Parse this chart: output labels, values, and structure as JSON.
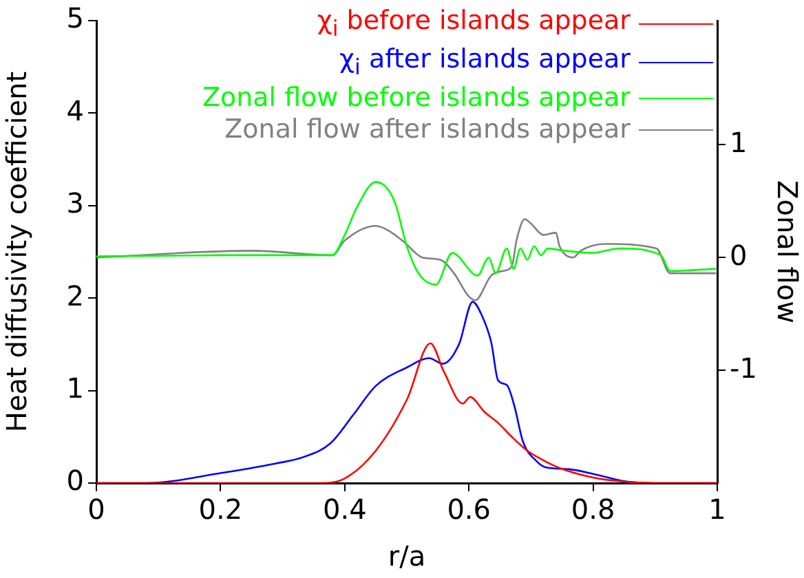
{
  "chart_data": {
    "type": "line",
    "xlabel": "r/a",
    "ylabel": "Heat diffusivity coefficient",
    "y2label": "Zonal flow",
    "xlim": [
      0,
      1
    ],
    "xticks": [
      0,
      0.2,
      0.4,
      0.6,
      0.8,
      1
    ],
    "ylim": [
      0,
      5
    ],
    "yticks": [
      0,
      1,
      2,
      3,
      4,
      5
    ],
    "y2lim": [
      -2,
      2.1
    ],
    "y2ticks": [
      -1,
      0,
      1
    ],
    "legend": "top right",
    "grid": false,
    "marker": "none",
    "series": [
      {
        "name": "χ$_{i}$ before islands appear",
        "color": "#ff0000",
        "x": [
          0,
          0.2,
          0.36,
          0.4,
          0.45,
          0.5,
          0.538,
          0.56,
          0.59,
          0.602,
          0.625,
          0.647,
          0.669,
          0.694,
          0.716,
          0.747,
          0.8,
          0.843,
          0.9,
          1
        ],
        "values": [
          0,
          0,
          0,
          0.05,
          0.35,
          0.9,
          1.51,
          1.2,
          0.86,
          0.93,
          0.77,
          0.65,
          0.5,
          0.35,
          0.26,
          0.16,
          0.06,
          0.02,
          0,
          0
        ]
      },
      {
        "name": "χ$_{i}$ after islands appear",
        "color": "#0000ff",
        "x": [
          0,
          0.08,
          0.202,
          0.288,
          0.333,
          0.377,
          0.414,
          0.45,
          0.5,
          0.536,
          0.558,
          0.584,
          0.606,
          0.621,
          0.636,
          0.647,
          0.661,
          0.673,
          0.687,
          0.71,
          0.724,
          0.761,
          0.806,
          0.85,
          0.9,
          1
        ],
        "values": [
          0,
          0,
          0.11,
          0.21,
          0.28,
          0.43,
          0.74,
          1.05,
          1.25,
          1.35,
          1.29,
          1.5,
          1.96,
          1.81,
          1.52,
          1.11,
          1.06,
          0.84,
          0.45,
          0.23,
          0.17,
          0.15,
          0.09,
          0.02,
          0,
          0
        ]
      },
      {
        "name": "Zonal flow before islands appear",
        "color": "#00ff00",
        "axis": "y2",
        "x": [
          0,
          0.2,
          0.38,
          0.4,
          0.42,
          0.45,
          0.48,
          0.5,
          0.52,
          0.547,
          0.573,
          0.614,
          0.632,
          0.643,
          0.661,
          0.672,
          0.683,
          0.694,
          0.705,
          0.716,
          0.727,
          0.754,
          0.798,
          0.843,
          0.909,
          0.924,
          0.998
        ],
        "values": [
          0.01,
          0.02,
          0.02,
          0.2,
          0.45,
          0.67,
          0.5,
          0.1,
          -0.15,
          -0.24,
          0.04,
          -0.16,
          0,
          -0.14,
          0.08,
          -0.1,
          0.08,
          -0.02,
          0.1,
          0.02,
          0.08,
          0.06,
          0.04,
          0.08,
          0.02,
          -0.12,
          -0.1
        ]
      },
      {
        "name": "Zonal flow after islands appear",
        "color": "#808080",
        "axis": "y2",
        "x": [
          0,
          0.25,
          0.38,
          0.4,
          0.45,
          0.47,
          0.495,
          0.525,
          0.554,
          0.576,
          0.599,
          0.61,
          0.636,
          0.654,
          0.669,
          0.677,
          0.69,
          0.7,
          0.72,
          0.74,
          0.746,
          0.768,
          0.78,
          0.82,
          0.902,
          0.924,
          0.998
        ],
        "values": [
          0,
          0.06,
          0.02,
          0.15,
          0.28,
          0.24,
          0.14,
          0,
          -0.02,
          -0.14,
          -0.34,
          -0.38,
          -0.16,
          -0.12,
          -0.08,
          0.16,
          0.34,
          0.3,
          0.2,
          0.22,
          0.1,
          0,
          0.06,
          0.12,
          0.08,
          -0.14,
          -0.14
        ]
      }
    ]
  }
}
